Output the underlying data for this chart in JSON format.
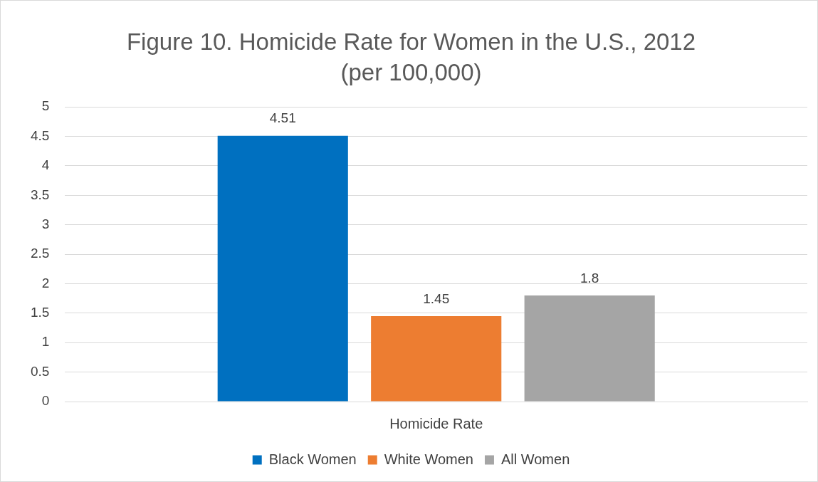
{
  "chart_data": {
    "type": "bar",
    "title": "Figure 10. Homicide Rate for Women in the U.S., 2012",
    "subtitle": "(per 100,000)",
    "categories": [
      "Homicide Rate"
    ],
    "series": [
      {
        "name": "Black Women",
        "color": "#0070c0",
        "values": [
          4.51
        ]
      },
      {
        "name": "White Women",
        "color": "#ed7d31",
        "values": [
          1.45
        ]
      },
      {
        "name": "All Women",
        "color": "#a5a5a5",
        "values": [
          1.8
        ]
      }
    ],
    "ylim": [
      0,
      5
    ],
    "yticks": [
      0,
      0.5,
      1,
      1.5,
      2,
      2.5,
      3,
      3.5,
      4,
      4.5,
      5
    ],
    "grid": "y",
    "legend": "bottom",
    "data_labels": true
  }
}
